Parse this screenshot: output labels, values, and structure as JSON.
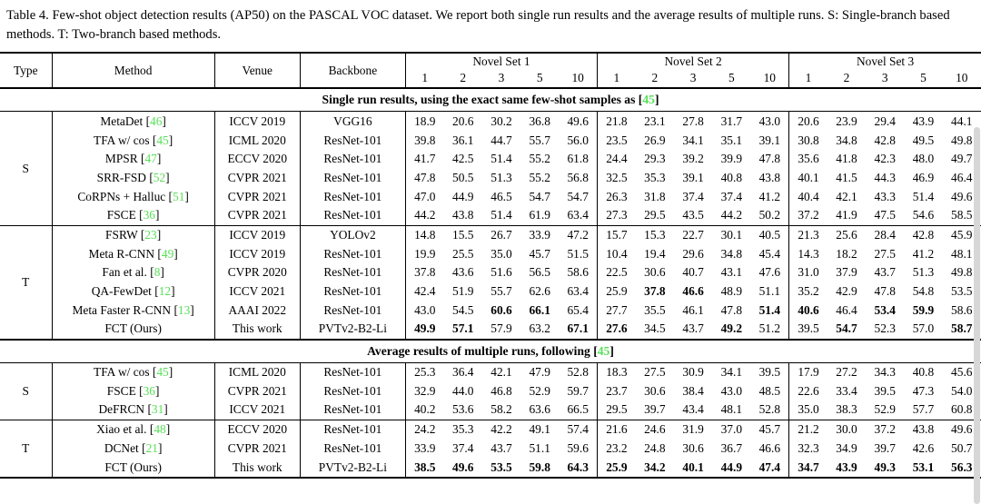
{
  "caption": "Table 4. Few-shot object detection results (AP50) on the PASCAL VOC dataset. We report both single run results and the average results of multiple runs. S: Single-branch based methods. T: Two-branch based methods.",
  "colors": {
    "citation_green": "#58e058",
    "text": "#000000",
    "rule": "#000000"
  },
  "header": {
    "type": "Type",
    "method": "Method",
    "venue": "Venue",
    "backbone": "Backbone",
    "novel_sets": [
      "Novel Set 1",
      "Novel Set 2",
      "Novel Set 3"
    ],
    "shots": [
      "1",
      "2",
      "3",
      "5",
      "10"
    ]
  },
  "sections": [
    {
      "band": {
        "text": "Single run results, using the exact same few-shot samples as ",
        "ref": "45"
      },
      "groups": [
        {
          "type": "S",
          "rows": [
            {
              "method": "MetaDet",
              "ref": "46",
              "venue": "ICCV 2019",
              "backbone": "VGG16",
              "values": [
                "18.9",
                "20.6",
                "30.2",
                "36.8",
                "49.6",
                "21.8",
                "23.1",
                "27.8",
                "31.7",
                "43.0",
                "20.6",
                "23.9",
                "29.4",
                "43.9",
                "44.1"
              ],
              "bold": []
            },
            {
              "method": "TFA w/ cos",
              "ref": "45",
              "venue": "ICML 2020",
              "backbone": "ResNet-101",
              "values": [
                "39.8",
                "36.1",
                "44.7",
                "55.7",
                "56.0",
                "23.5",
                "26.9",
                "34.1",
                "35.1",
                "39.1",
                "30.8",
                "34.8",
                "42.8",
                "49.5",
                "49.8"
              ],
              "bold": []
            },
            {
              "method": "MPSR",
              "ref": "47",
              "venue": "ECCV 2020",
              "backbone": "ResNet-101",
              "values": [
                "41.7",
                "42.5",
                "51.4",
                "55.2",
                "61.8",
                "24.4",
                "29.3",
                "39.2",
                "39.9",
                "47.8",
                "35.6",
                "41.8",
                "42.3",
                "48.0",
                "49.7"
              ],
              "bold": []
            },
            {
              "method": "SRR-FSD",
              "ref": "52",
              "venue": "CVPR 2021",
              "backbone": "ResNet-101",
              "values": [
                "47.8",
                "50.5",
                "51.3",
                "55.2",
                "56.8",
                "32.5",
                "35.3",
                "39.1",
                "40.8",
                "43.8",
                "40.1",
                "41.5",
                "44.3",
                "46.9",
                "46.4"
              ],
              "bold": []
            },
            {
              "method": "CoRPNs + Halluc",
              "ref": "51",
              "venue": "CVPR 2021",
              "backbone": "ResNet-101",
              "values": [
                "47.0",
                "44.9",
                "46.5",
                "54.7",
                "54.7",
                "26.3",
                "31.8",
                "37.4",
                "37.4",
                "41.2",
                "40.4",
                "42.1",
                "43.3",
                "51.4",
                "49.6"
              ],
              "bold": []
            },
            {
              "method": "FSCE",
              "ref": "36",
              "venue": "CVPR 2021",
              "backbone": "ResNet-101",
              "values": [
                "44.2",
                "43.8",
                "51.4",
                "61.9",
                "63.4",
                "27.3",
                "29.5",
                "43.5",
                "44.2",
                "50.2",
                "37.2",
                "41.9",
                "47.5",
                "54.6",
                "58.5"
              ],
              "bold": []
            }
          ]
        },
        {
          "type": "T",
          "rows": [
            {
              "method": "FSRW",
              "ref": "23",
              "venue": "ICCV 2019",
              "backbone": "YOLOv2",
              "values": [
                "14.8",
                "15.5",
                "26.7",
                "33.9",
                "47.2",
                "15.7",
                "15.3",
                "22.7",
                "30.1",
                "40.5",
                "21.3",
                "25.6",
                "28.4",
                "42.8",
                "45.9"
              ],
              "bold": []
            },
            {
              "method": "Meta R-CNN",
              "ref": "49",
              "venue": "ICCV 2019",
              "backbone": "ResNet-101",
              "values": [
                "19.9",
                "25.5",
                "35.0",
                "45.7",
                "51.5",
                "10.4",
                "19.4",
                "29.6",
                "34.8",
                "45.4",
                "14.3",
                "18.2",
                "27.5",
                "41.2",
                "48.1"
              ],
              "bold": []
            },
            {
              "method": "Fan et al.",
              "ref": "8",
              "venue": "CVPR 2020",
              "backbone": "ResNet-101",
              "values": [
                "37.8",
                "43.6",
                "51.6",
                "56.5",
                "58.6",
                "22.5",
                "30.6",
                "40.7",
                "43.1",
                "47.6",
                "31.0",
                "37.9",
                "43.7",
                "51.3",
                "49.8"
              ],
              "bold": []
            },
            {
              "method": "QA-FewDet",
              "ref": "12",
              "venue": "ICCV 2021",
              "backbone": "ResNet-101",
              "values": [
                "42.4",
                "51.9",
                "55.7",
                "62.6",
                "63.4",
                "25.9",
                "37.8",
                "46.6",
                "48.9",
                "51.1",
                "35.2",
                "42.9",
                "47.8",
                "54.8",
                "53.5"
              ],
              "bold": [
                6,
                7
              ]
            },
            {
              "method": "Meta Faster R-CNN",
              "ref": "13",
              "venue": "AAAI 2022",
              "backbone": "ResNet-101",
              "values": [
                "43.0",
                "54.5",
                "60.6",
                "66.1",
                "65.4",
                "27.7",
                "35.5",
                "46.1",
                "47.8",
                "51.4",
                "40.6",
                "46.4",
                "53.4",
                "59.9",
                "58.6"
              ],
              "bold": [
                2,
                3,
                9,
                10,
                12,
                13
              ]
            },
            {
              "method": "FCT (Ours)",
              "ref": null,
              "venue": "This work",
              "backbone": "PVTv2-B2-Li",
              "values": [
                "49.9",
                "57.1",
                "57.9",
                "63.2",
                "67.1",
                "27.6",
                "34.5",
                "43.7",
                "49.2",
                "51.2",
                "39.5",
                "54.7",
                "52.3",
                "57.0",
                "58.7"
              ],
              "bold": [
                0,
                1,
                4,
                5,
                8,
                11,
                14
              ]
            }
          ]
        }
      ]
    },
    {
      "band": {
        "text": "Average results of multiple runs, following ",
        "ref": "45"
      },
      "groups": [
        {
          "type": "S",
          "rows": [
            {
              "method": "TFA w/ cos",
              "ref": "45",
              "venue": "ICML 2020",
              "backbone": "ResNet-101",
              "values": [
                "25.3",
                "36.4",
                "42.1",
                "47.9",
                "52.8",
                "18.3",
                "27.5",
                "30.9",
                "34.1",
                "39.5",
                "17.9",
                "27.2",
                "34.3",
                "40.8",
                "45.6"
              ],
              "bold": []
            },
            {
              "method": "FSCE",
              "ref": "36",
              "venue": "CVPR 2021",
              "backbone": "ResNet-101",
              "values": [
                "32.9",
                "44.0",
                "46.8",
                "52.9",
                "59.7",
                "23.7",
                "30.6",
                "38.4",
                "43.0",
                "48.5",
                "22.6",
                "33.4",
                "39.5",
                "47.3",
                "54.0"
              ],
              "bold": []
            },
            {
              "method": "DeFRCN",
              "ref": "31",
              "venue": "ICCV 2021",
              "backbone": "ResNet-101",
              "values": [
                "40.2",
                "53.6",
                "58.2",
                "63.6",
                "66.5",
                "29.5",
                "39.7",
                "43.4",
                "48.1",
                "52.8",
                "35.0",
                "38.3",
                "52.9",
                "57.7",
                "60.8"
              ],
              "bold": []
            }
          ]
        },
        {
          "type": "T",
          "rows": [
            {
              "method": "Xiao et al.",
              "ref": "48",
              "venue": "ECCV 2020",
              "backbone": "ResNet-101",
              "values": [
                "24.2",
                "35.3",
                "42.2",
                "49.1",
                "57.4",
                "21.6",
                "24.6",
                "31.9",
                "37.0",
                "45.7",
                "21.2",
                "30.0",
                "37.2",
                "43.8",
                "49.6"
              ],
              "bold": []
            },
            {
              "method": "DCNet",
              "ref": "21",
              "venue": "CVPR 2021",
              "backbone": "ResNet-101",
              "values": [
                "33.9",
                "37.4",
                "43.7",
                "51.1",
                "59.6",
                "23.2",
                "24.8",
                "30.6",
                "36.7",
                "46.6",
                "32.3",
                "34.9",
                "39.7",
                "42.6",
                "50.7"
              ],
              "bold": []
            },
            {
              "method": "FCT (Ours)",
              "ref": null,
              "venue": "This work",
              "backbone": "PVTv2-B2-Li",
              "values": [
                "38.5",
                "49.6",
                "53.5",
                "59.8",
                "64.3",
                "25.9",
                "34.2",
                "40.1",
                "44.9",
                "47.4",
                "34.7",
                "43.9",
                "49.3",
                "53.1",
                "56.3"
              ],
              "bold": [
                0,
                1,
                2,
                3,
                4,
                5,
                6,
                7,
                8,
                9,
                10,
                11,
                12,
                13,
                14
              ]
            }
          ]
        }
      ]
    }
  ]
}
